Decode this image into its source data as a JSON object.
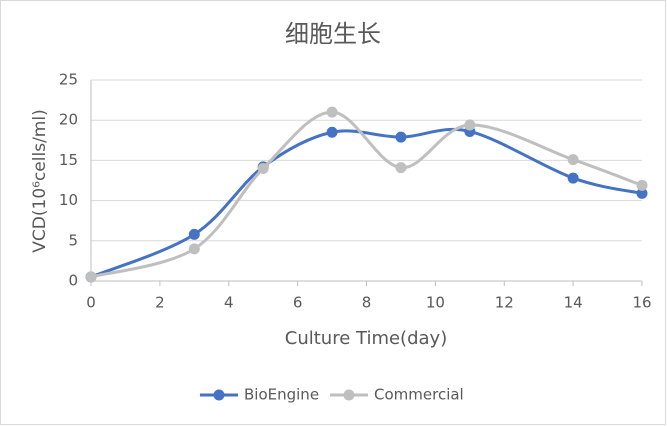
{
  "chart_data": {
    "type": "line",
    "title": "细胞生长",
    "x_label": "Culture Time(day)",
    "y_label": "VCD(10⁶cells/ml)",
    "x": [
      0,
      3,
      5,
      7,
      9,
      11,
      14,
      16
    ],
    "series": [
      {
        "name": "BioEngine",
        "color": "#4472c4",
        "values": [
          0.5,
          5.8,
          14.2,
          18.5,
          17.9,
          18.6,
          12.8,
          10.9
        ]
      },
      {
        "name": "Commercial",
        "color": "#bfbfbf",
        "values": [
          0.5,
          4.0,
          14.0,
          21.0,
          14.1,
          19.4,
          15.1,
          11.9
        ]
      }
    ],
    "xlim": [
      0,
      16
    ],
    "xticks": [
      0,
      2,
      4,
      6,
      8,
      10,
      12,
      14,
      16
    ],
    "ylim": [
      0,
      25
    ],
    "yticks": [
      0,
      5,
      10,
      15,
      20,
      25
    ],
    "grid": true,
    "smooth": true,
    "legend": "bottom"
  }
}
